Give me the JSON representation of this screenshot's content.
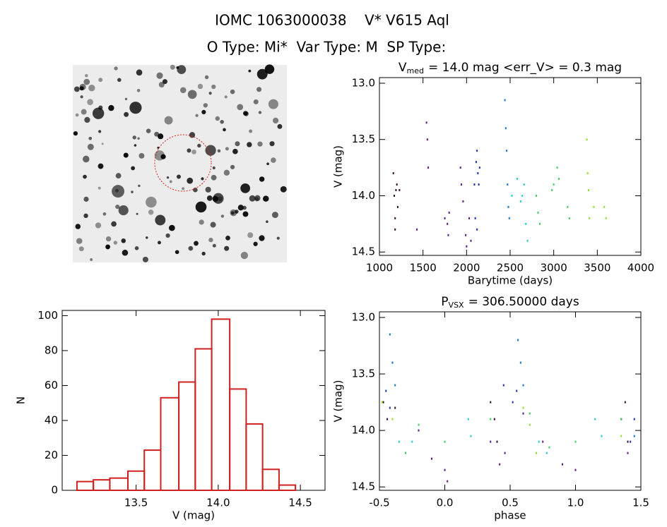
{
  "header": {
    "title": "IOMC 1063000038    V* V615 Aql",
    "subtitle": "O Type: Mi*  Var Type: M  SP Type:"
  },
  "chart_data": [
    {
      "type": "histogram",
      "color": "#d02020",
      "bins": [
        13.14,
        13.24,
        13.34,
        13.45,
        13.55,
        13.65,
        13.76,
        13.86,
        13.96,
        14.07,
        14.17,
        14.27,
        14.37,
        14.47
      ],
      "values": [
        5,
        6,
        7,
        11,
        23,
        53,
        62,
        81,
        98,
        58,
        38,
        12,
        3
      ],
      "xlim": [
        13.05,
        14.65
      ],
      "xticks": [
        13.5,
        {
          "value": 14,
          "label": "14.0"
        },
        14.5
      ],
      "ylim": [
        0,
        103
      ],
      "yticks": [
        0,
        20,
        40,
        60,
        80,
        100
      ],
      "xlabel": "V (mag)",
      "ylabel": "N"
    },
    {
      "type": "scatter",
      "title": {
        "text": "V",
        "sub": "med",
        "rest": "= 14.0 mag <err_V> = 0.3 mag"
      },
      "xlabel": "Barytime (days)",
      "ylabel": "V (mag)",
      "xlim": [
        1000,
        4000
      ],
      "xticks": [
        1000,
        1500,
        2000,
        2500,
        3000,
        3500,
        4000
      ],
      "ylim": [
        14.53,
        12.95
      ],
      "yticks": [
        {
          "value": 13,
          "label": "13.0"
        },
        13.5,
        {
          "value": 14,
          "label": "14.0"
        },
        14.5
      ],
      "series": [
        {
          "color": "#301030",
          "x": [
            1160,
            1170,
            1180,
            1190,
            1200,
            1210,
            1230,
            1180
          ],
          "values": [
            13.8,
            14.0,
            14.2,
            13.95,
            13.9,
            14.1,
            13.95,
            14.3
          ]
        },
        {
          "color": "#5a1a8a",
          "x": [
            1430,
            1540,
            1550,
            1560,
            1750,
            1780,
            1800,
            1790,
            1930,
            1940,
            1960,
            1990,
            2000,
            2030,
            2050
          ],
          "values": [
            14.3,
            13.35,
            13.5,
            13.75,
            14.2,
            14.25,
            14.15,
            14.35,
            13.75,
            13.9,
            14.05,
            14.35,
            14.45,
            14.2,
            14.4
          ]
        },
        {
          "color": "#2030b0",
          "x": [
            2090,
            2100,
            2110,
            2120,
            2130,
            2140,
            2150,
            2120
          ],
          "values": [
            13.9,
            14.2,
            13.7,
            13.6,
            13.8,
            13.9,
            13.75,
            14.3
          ]
        },
        {
          "color": "#1878c8",
          "x": [
            2440,
            2450,
            2460,
            2470,
            2480,
            2490
          ],
          "values": [
            13.15,
            13.4,
            13.6,
            13.9,
            14.1,
            14.2
          ]
        },
        {
          "color": "#20d0d0",
          "x": [
            2520,
            2580,
            2620,
            2640,
            2660,
            2680,
            2700
          ],
          "values": [
            14.0,
            13.85,
            14.05,
            14.0,
            13.9,
            14.25,
            14.4
          ]
        },
        {
          "color": "#40d060",
          "x": [
            2800,
            2820,
            2840,
            2980,
            3000,
            3040,
            3060,
            3160,
            3180
          ],
          "values": [
            14.0,
            14.15,
            14.25,
            13.95,
            13.9,
            13.75,
            13.85,
            14.1,
            14.2
          ]
        },
        {
          "color": "#90e030",
          "x": [
            3380,
            3390,
            3400,
            3410,
            3460,
            3580,
            3600
          ],
          "values": [
            13.5,
            13.8,
            13.95,
            14.2,
            14.1,
            14.1,
            14.2
          ]
        }
      ]
    },
    {
      "type": "scatter",
      "title": {
        "text": "P",
        "sub": "VSX",
        "rest": "= 306.50000 days"
      },
      "xlabel": "phase",
      "ylabel": "V (mag)",
      "xlim": [
        -0.5,
        1.5
      ],
      "xticks": [
        -0.5,
        {
          "value": 0,
          "label": "0.0"
        },
        0.5,
        {
          "value": 1,
          "label": "1.0"
        },
        1.5
      ],
      "ylim": [
        14.53,
        12.95
      ],
      "yticks": [
        {
          "value": 13,
          "label": "13.0"
        },
        13.5,
        {
          "value": 14,
          "label": "14.0"
        },
        14.5
      ],
      "series": [
        {
          "color": "#301030",
          "x": [
            -0.47,
            -0.44,
            -0.38,
            0.35,
            0.38,
            0.4,
            1.35,
            1.38,
            1.4
          ],
          "values": [
            13.75,
            13.9,
            13.8,
            13.75,
            13.9,
            14.1,
            13.9,
            13.75,
            14.1
          ]
        },
        {
          "color": "#5a1a8a",
          "x": [
            -0.2,
            -0.1,
            0.0,
            0.02,
            0.35,
            0.42,
            0.46,
            0.6,
            0.75,
            0.9,
            1.0,
            1.4
          ],
          "values": [
            14.0,
            14.25,
            14.35,
            14.45,
            14.1,
            14.3,
            14.2,
            13.85,
            14.1,
            14.3,
            14.35,
            14.2
          ]
        },
        {
          "color": "#2030b0",
          "x": [
            -0.45,
            -0.42,
            0.45,
            0.52,
            0.55,
            1.42,
            1.45
          ],
          "values": [
            13.65,
            13.8,
            13.6,
            13.75,
            13.65,
            14.1,
            13.9
          ]
        },
        {
          "color": "#1878c8",
          "x": [
            -0.42,
            -0.4,
            -0.38,
            0.56,
            0.58,
            0.6,
            1.45
          ],
          "values": [
            13.15,
            13.4,
            13.6,
            13.2,
            13.4,
            13.6,
            14.05
          ]
        },
        {
          "color": "#20d0d0",
          "x": [
            -0.35,
            -0.3,
            -0.25,
            0.18,
            0.2,
            0.72,
            0.78,
            1.15,
            1.2
          ],
          "values": [
            14.1,
            14.2,
            14.1,
            13.9,
            14.05,
            14.1,
            14.2,
            13.9,
            14.05
          ]
        },
        {
          "color": "#40d060",
          "x": [
            -0.3,
            -0.2,
            0.0,
            0.35,
            0.65,
            0.8,
            1.0,
            1.35
          ],
          "values": [
            14.2,
            13.95,
            14.1,
            13.9,
            13.85,
            14.15,
            14.1,
            13.9
          ]
        },
        {
          "color": "#90e030",
          "x": [
            -0.48,
            -0.4,
            0.6,
            0.65,
            0.7,
            1.35
          ],
          "values": [
            13.75,
            13.9,
            13.8,
            13.95,
            14.2,
            14.05
          ]
        }
      ]
    }
  ]
}
